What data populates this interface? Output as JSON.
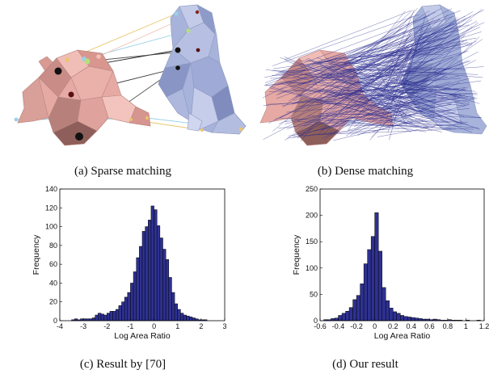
{
  "captions": {
    "a": "(a) Sparse matching",
    "b": "(b) Dense matching",
    "c": "(c) Result by [70]",
    "d": "(d) Our result"
  },
  "colors": {
    "source_shape": "#e6a9a3",
    "target_shape": "#a7b3da",
    "dense_lines": "#2b2d8f",
    "bar_fill": "#2e3191"
  },
  "chart_data": [
    {
      "type": "bar",
      "title": "",
      "xlabel": "Log Area Ratio",
      "ylabel": "Frequency",
      "xlim": [
        -4,
        3
      ],
      "ylim": [
        0,
        140
      ],
      "xticks": [
        "-4",
        "-3",
        "-2",
        "-1",
        "0",
        "1",
        "2",
        "3"
      ],
      "yticks": [
        "0",
        "20",
        "40",
        "60",
        "80",
        "100",
        "120",
        "140"
      ],
      "bin_width": 0.125,
      "bin_left_edges": [
        -3.5,
        -3.375,
        -3.25,
        -3.125,
        -3.0,
        -2.875,
        -2.75,
        -2.625,
        -2.5,
        -2.375,
        -2.25,
        -2.125,
        -2.0,
        -1.875,
        -1.75,
        -1.625,
        -1.5,
        -1.375,
        -1.25,
        -1.125,
        -1.0,
        -0.875,
        -0.75,
        -0.625,
        -0.5,
        -0.375,
        -0.25,
        -0.125,
        0.0,
        0.125,
        0.25,
        0.375,
        0.5,
        0.625,
        0.75,
        0.875,
        1.0,
        1.125,
        1.25,
        1.375,
        1.5,
        1.625,
        1.75,
        1.875,
        2.0,
        2.125
      ],
      "values": [
        1,
        2,
        1,
        2,
        2,
        2,
        2,
        3,
        6,
        8,
        7,
        6,
        8,
        10,
        10,
        12,
        16,
        20,
        25,
        30,
        40,
        52,
        67,
        79,
        95,
        100,
        107,
        122,
        118,
        101,
        88,
        76,
        65,
        46,
        30,
        18,
        12,
        8,
        6,
        5,
        4,
        3,
        2,
        1,
        1,
        1
      ]
    },
    {
      "type": "bar",
      "title": "",
      "xlabel": "Log Area Ratio",
      "ylabel": "Frequency",
      "xlim": [
        -0.6,
        1.2
      ],
      "ylim": [
        0,
        250
      ],
      "xticks": [
        "-0.6",
        "-0.4",
        "-0.2",
        "0",
        "0.2",
        "0.4",
        "0.6",
        "0.8",
        "1",
        "1.2"
      ],
      "yticks": [
        "0",
        "50",
        "100",
        "150",
        "200",
        "250"
      ],
      "bin_width": 0.04,
      "bin_left_edges": [
        -0.56,
        -0.52,
        -0.48,
        -0.44,
        -0.4,
        -0.36,
        -0.32,
        -0.28,
        -0.24,
        -0.2,
        -0.16,
        -0.12,
        -0.08,
        -0.04,
        0.0,
        0.04,
        0.08,
        0.12,
        0.16,
        0.2,
        0.24,
        0.28,
        0.32,
        0.36,
        0.4,
        0.44,
        0.48,
        0.52,
        0.56,
        0.6,
        0.64,
        0.68,
        0.72,
        0.76,
        0.8,
        0.84,
        0.88,
        0.92,
        0.96,
        1.0,
        1.04,
        1.08,
        1.12
      ],
      "values": [
        2,
        2,
        4,
        5,
        10,
        14,
        18,
        25,
        40,
        48,
        70,
        108,
        135,
        160,
        205,
        132,
        63,
        38,
        24,
        17,
        14,
        10,
        8,
        7,
        6,
        5,
        4,
        3,
        3,
        2,
        3,
        2,
        1,
        1,
        2,
        1,
        1,
        1,
        0,
        1,
        0,
        0,
        1
      ]
    }
  ]
}
